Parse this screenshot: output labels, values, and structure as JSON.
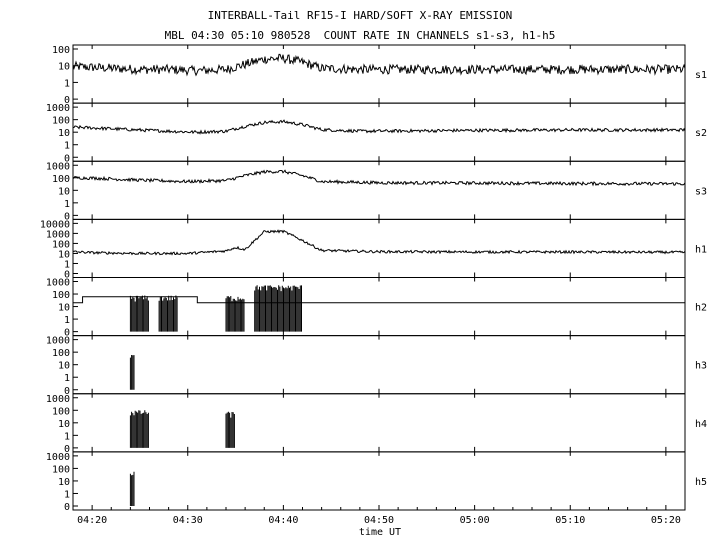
{
  "title": "INTERBALL-Tail RF15-I HARD/SOFT X-RAY EMISSION",
  "subtitle": "MBL 04:30 05:10 980528  COUNT RATE IN CHANNELS s1-s3, h1-h5",
  "chart_data": {
    "type": "line",
    "title": "INTERBALL-Tail RF15-I HARD/SOFT X-RAY EMISSION",
    "subtitle": "MBL 04:30 05:10 980528  COUNT RATE IN CHANNELS s1-s3, h1-h5",
    "xlabel": "time UT",
    "xlim": [
      "04:18",
      "05:22"
    ],
    "x_ticks": [
      "04:20",
      "04:30",
      "04:40",
      "04:50",
      "05:00",
      "05:10",
      "05:20"
    ],
    "yscale": "log",
    "grid": false,
    "panels": [
      {
        "name": "s1",
        "y_ticks": [
          "100",
          "10",
          "1",
          "0"
        ],
        "ylim": [
          0,
          100
        ],
        "points": [
          [
            "04:18",
            9
          ],
          [
            "04:20",
            8
          ],
          [
            "04:22",
            7
          ],
          [
            "04:25",
            6
          ],
          [
            "04:28",
            6
          ],
          [
            "04:31",
            5
          ],
          [
            "04:34",
            6
          ],
          [
            "04:36",
            12
          ],
          [
            "04:38",
            25
          ],
          [
            "04:40",
            28
          ],
          [
            "04:42",
            16
          ],
          [
            "04:44",
            7
          ],
          [
            "04:48",
            6
          ],
          [
            "04:55",
            6
          ],
          [
            "05:00",
            6
          ],
          [
            "05:10",
            6
          ],
          [
            "05:22",
            6
          ]
        ]
      },
      {
        "name": "s2",
        "y_ticks": [
          "1000",
          "100",
          "10",
          "1",
          "0"
        ],
        "ylim": [
          0,
          1000
        ],
        "points": [
          [
            "04:18",
            25
          ],
          [
            "04:20",
            22
          ],
          [
            "04:24",
            16
          ],
          [
            "04:28",
            12
          ],
          [
            "04:31",
            10
          ],
          [
            "04:34",
            12
          ],
          [
            "04:36",
            30
          ],
          [
            "04:38",
            60
          ],
          [
            "04:40",
            70
          ],
          [
            "04:42",
            40
          ],
          [
            "04:44",
            16
          ],
          [
            "04:48",
            12
          ],
          [
            "04:55",
            13
          ],
          [
            "05:00",
            14
          ],
          [
            "05:10",
            15
          ],
          [
            "05:22",
            15
          ]
        ]
      },
      {
        "name": "s3",
        "y_ticks": [
          "1000",
          "100",
          "10",
          "1",
          "0"
        ],
        "ylim": [
          0,
          1000
        ],
        "points": [
          [
            "04:18",
            100
          ],
          [
            "04:20",
            95
          ],
          [
            "04:25",
            65
          ],
          [
            "04:30",
            50
          ],
          [
            "04:34",
            60
          ],
          [
            "04:36",
            150
          ],
          [
            "04:38",
            300
          ],
          [
            "04:40",
            320
          ],
          [
            "04:42",
            150
          ],
          [
            "04:44",
            50
          ],
          [
            "04:50",
            40
          ],
          [
            "05:00",
            38
          ],
          [
            "05:10",
            35
          ],
          [
            "05:22",
            33
          ]
        ]
      },
      {
        "name": "h1",
        "y_ticks": [
          "10000",
          "1000",
          "100",
          "10",
          "1",
          "0"
        ],
        "ylim": [
          0,
          10000
        ],
        "points": [
          [
            "04:18",
            15
          ],
          [
            "04:20",
            12
          ],
          [
            "04:25",
            10
          ],
          [
            "04:30",
            10
          ],
          [
            "04:34",
            18
          ],
          [
            "04:35",
            40
          ],
          [
            "04:36",
            25
          ],
          [
            "04:37",
            200
          ],
          [
            "04:38",
            1500
          ],
          [
            "04:40",
            1600
          ],
          [
            "04:42",
            200
          ],
          [
            "04:44",
            20
          ],
          [
            "04:50",
            15
          ],
          [
            "05:00",
            14
          ],
          [
            "05:10",
            14
          ],
          [
            "05:22",
            13
          ]
        ]
      },
      {
        "name": "h2",
        "y_ticks": [
          "1000",
          "100",
          "10",
          "1",
          "0"
        ],
        "ylim": [
          0,
          1000
        ],
        "baseline": [
          [
            "04:18",
            20
          ],
          [
            "04:19",
            60
          ],
          [
            "04:30",
            60
          ],
          [
            "04:31",
            20
          ],
          [
            "05:22",
            20
          ]
        ],
        "bursts": [
          {
            "start": "04:24",
            "end": "04:26",
            "peak": 60
          },
          {
            "start": "04:27",
            "end": "04:29",
            "peak": 60
          },
          {
            "start": "04:34",
            "end": "04:36",
            "peak": 60
          },
          {
            "start": "04:37",
            "end": "04:42",
            "peak": 400
          }
        ]
      },
      {
        "name": "h3",
        "y_ticks": [
          "1000",
          "100",
          "10",
          "1",
          "0"
        ],
        "ylim": [
          0,
          1000
        ],
        "bursts": [
          {
            "start": "04:24",
            "end": "04:24.5",
            "peak": 80
          }
        ]
      },
      {
        "name": "h4",
        "y_ticks": [
          "1000",
          "100",
          "10",
          "1",
          "0"
        ],
        "ylim": [
          0,
          1000
        ],
        "bursts": [
          {
            "start": "04:24",
            "end": "04:26",
            "peak": 80
          },
          {
            "start": "04:34",
            "end": "04:35",
            "peak": 60
          }
        ]
      },
      {
        "name": "h5",
        "y_ticks": [
          "1000",
          "100",
          "10",
          "1",
          "0"
        ],
        "ylim": [
          0,
          1000
        ],
        "bursts": [
          {
            "start": "04:24",
            "end": "04:24.5",
            "peak": 50
          }
        ]
      }
    ]
  }
}
